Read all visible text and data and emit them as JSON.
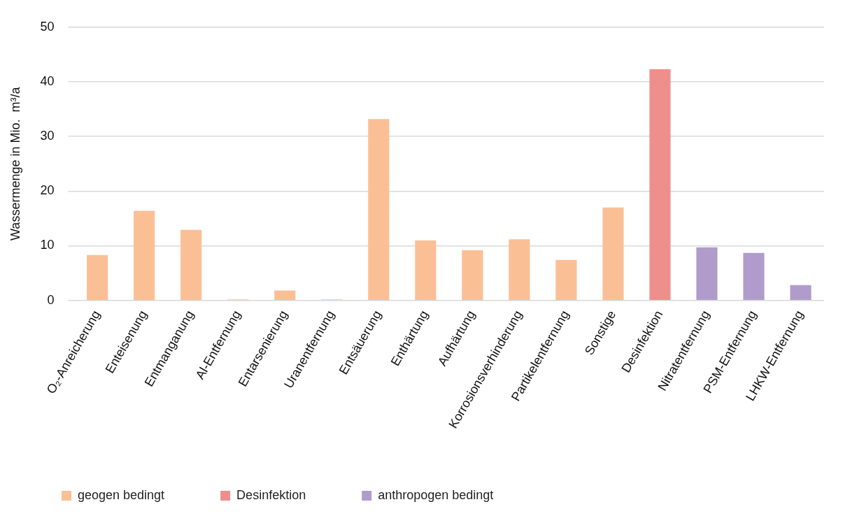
{
  "chart_data": {
    "type": "bar",
    "ylabel": "Wassermenge in Mio.  m³/a",
    "categories": [
      "O₂-Anreicherung",
      "Enteisenung",
      "Entmanganung",
      "Al-Entfernung",
      "Entarsenierung",
      "Uranentfernung",
      "Entsäuerung",
      "Enthärtung",
      "Aufhärtung",
      "Korrosionsverhinderung",
      "Partikelentfernung",
      "Sonstige",
      "Desinfektion",
      "Nitratentfernung",
      "PSM-Entfernung",
      "LHKW-Entfernung"
    ],
    "series": [
      {
        "name": "geogen bedingt",
        "color": "#fbbf96",
        "values": [
          8.3,
          16.4,
          12.9,
          0.2,
          1.8,
          0.2,
          33.2,
          11,
          9.2,
          11.2,
          7.4,
          17,
          null,
          null,
          null,
          null
        ]
      },
      {
        "name": "Desinfektion",
        "color": "#ef8f8c",
        "values": [
          null,
          null,
          null,
          null,
          null,
          null,
          null,
          null,
          null,
          null,
          null,
          null,
          42.3,
          null,
          null,
          null
        ]
      },
      {
        "name": "anthropogen bedingt",
        "color": "#b09ccb",
        "values": [
          null,
          null,
          null,
          null,
          null,
          null,
          null,
          null,
          null,
          null,
          null,
          null,
          null,
          9.7,
          8.7,
          2.8
        ]
      }
    ],
    "ylim": [
      0,
      50
    ],
    "yticks": [
      0,
      10,
      20,
      30,
      40,
      50
    ],
    "grid": "y",
    "legend": "bottom"
  }
}
